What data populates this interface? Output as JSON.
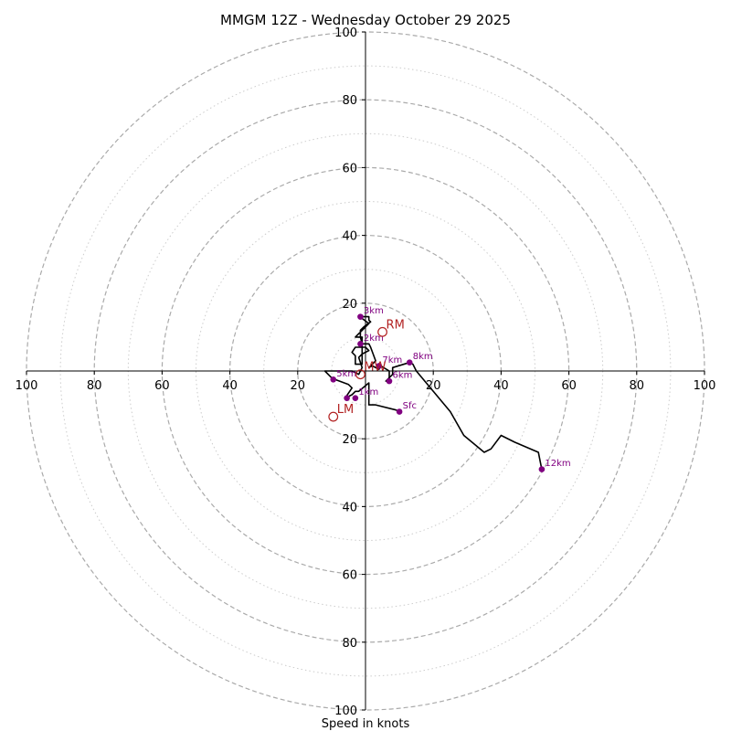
{
  "chart_data": {
    "type": "hodograph",
    "title": "MMGM 12Z - Wednesday October 29 2025",
    "xlabel": "Speed in knots",
    "units": "knots",
    "range": [
      -100,
      100
    ],
    "major_rings": [
      20,
      40,
      60,
      80,
      100
    ],
    "minor_rings": [
      10,
      30,
      50,
      70,
      90
    ],
    "x_tick_labels": [
      "100",
      "80",
      "60",
      "40",
      "20",
      "20",
      "40",
      "60",
      "80",
      "100"
    ],
    "x_tick_values": [
      -100,
      -80,
      -60,
      -40,
      -20,
      20,
      40,
      60,
      80,
      100
    ],
    "y_tick_labels": [
      "100",
      "80",
      "60",
      "40",
      "20",
      "20",
      "40",
      "60",
      "80",
      "100"
    ],
    "y_tick_values": [
      100,
      80,
      60,
      40,
      20,
      -20,
      -40,
      -60,
      -80,
      -100
    ],
    "wind_trace": [
      [
        10,
        -12
      ],
      [
        9,
        -11.5
      ],
      [
        3,
        -10
      ],
      [
        1,
        -10
      ],
      [
        1,
        -7
      ],
      [
        1,
        -3.5
      ],
      [
        -2,
        -6
      ],
      [
        -3,
        -6
      ],
      [
        -4,
        -7
      ],
      [
        -6,
        -8
      ],
      [
        -4,
        -5
      ],
      [
        -5,
        -4
      ],
      [
        -9,
        -2.5
      ],
      [
        -10,
        -2
      ],
      [
        -12,
        0
      ],
      [
        -8,
        0
      ],
      [
        -4,
        0
      ],
      [
        -2,
        -1
      ],
      [
        -1,
        1
      ],
      [
        -2,
        4
      ],
      [
        -1,
        5
      ],
      [
        1,
        6
      ],
      [
        0,
        7
      ],
      [
        -3,
        7
      ],
      [
        -4,
        5.5
      ],
      [
        -3,
        4.5
      ],
      [
        -3,
        2
      ],
      [
        -1,
        2
      ],
      [
        -1,
        6
      ],
      [
        -1,
        8
      ],
      [
        -1,
        10
      ],
      [
        -3,
        10
      ],
      [
        -2,
        11
      ],
      [
        -1,
        12
      ],
      [
        1,
        14
      ],
      [
        -1,
        15.5
      ],
      [
        -1,
        16
      ],
      [
        1,
        16
      ],
      [
        1,
        15
      ],
      [
        1.5,
        14.5
      ],
      [
        -0.5,
        13
      ],
      [
        -1.5,
        12
      ],
      [
        -1.5,
        10
      ],
      [
        -1,
        8
      ],
      [
        1,
        8
      ],
      [
        1.5,
        7
      ],
      [
        3,
        3
      ],
      [
        1,
        1
      ],
      [
        2,
        1.5
      ],
      [
        4,
        0.5
      ],
      [
        4.5,
        1.5
      ],
      [
        7,
        0
      ],
      [
        7,
        -3
      ],
      [
        6,
        -3
      ],
      [
        8,
        -1
      ],
      [
        8,
        1
      ],
      [
        13,
        2.5
      ],
      [
        14,
        2
      ],
      [
        15,
        0
      ],
      [
        20,
        -6
      ],
      [
        25,
        -12
      ],
      [
        29,
        -19
      ],
      [
        35,
        -24
      ],
      [
        37,
        -23
      ],
      [
        40,
        -19
      ],
      [
        44,
        -21
      ],
      [
        51,
        -24
      ],
      [
        52,
        -29
      ]
    ],
    "height_markers": [
      {
        "label": "Sfc",
        "u": 10,
        "v": -12
      },
      {
        "label": "1km",
        "u": -3,
        "v": -8
      },
      {
        "label": "2km",
        "u": -1.5,
        "v": 8
      },
      {
        "label": "3km",
        "u": -1.5,
        "v": 16
      },
      {
        "label": "5km",
        "u": -9.5,
        "v": -2.5
      },
      {
        "label": "6km",
        "u": 7,
        "v": -3
      },
      {
        "label": "7km",
        "u": 4,
        "v": 1.5
      },
      {
        "label": "8km",
        "u": 13,
        "v": 2.5
      },
      {
        "label": "12km",
        "u": 52,
        "v": -29
      }
    ],
    "extra_markers": [
      {
        "u": -5.5,
        "v": -8
      }
    ],
    "storm_motion": [
      {
        "label": "RM",
        "u": 5,
        "v": 11.5
      },
      {
        "label": "LM",
        "u": -9.5,
        "v": -13.5
      },
      {
        "label": "MW",
        "u": -1.5,
        "v": -1
      }
    ],
    "colors": {
      "trace": "#000000",
      "height_marker": "#800080",
      "storm_motion": "#b22222",
      "major_ring": "#aaaaaa",
      "minor_ring": "#cccccc",
      "axis": "#000000"
    }
  }
}
